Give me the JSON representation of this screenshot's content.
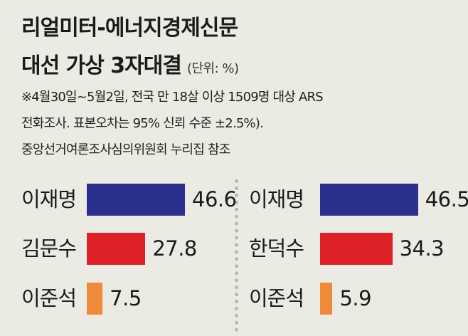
{
  "title": {
    "line1": "리얼미터-에너지경제신문",
    "line2": "대선 가상 3자대결",
    "unit": "(단위: %)"
  },
  "notes": [
    "※4월30일~5월2일, 전국 만 18살 이상 1509명 대상 ARS",
    "전화조사. 표본오차는 95% 신뢰 수준 ±2.5%).",
    "중앙선거여론조사심의위원회 누리집 참조"
  ],
  "chart_data": [
    {
      "type": "bar",
      "orientation": "horizontal",
      "categories": [
        "이재명",
        "김문수",
        "이준석"
      ],
      "values": [
        46.6,
        27.8,
        7.5
      ],
      "colors": [
        "#2a318c",
        "#df2129",
        "#ee8a3a"
      ]
    },
    {
      "type": "bar",
      "orientation": "horizontal",
      "categories": [
        "이재명",
        "한덕수",
        "이준석"
      ],
      "values": [
        46.5,
        34.3,
        5.9
      ],
      "colors": [
        "#2a318c",
        "#df2129",
        "#ee8a3a"
      ]
    }
  ]
}
